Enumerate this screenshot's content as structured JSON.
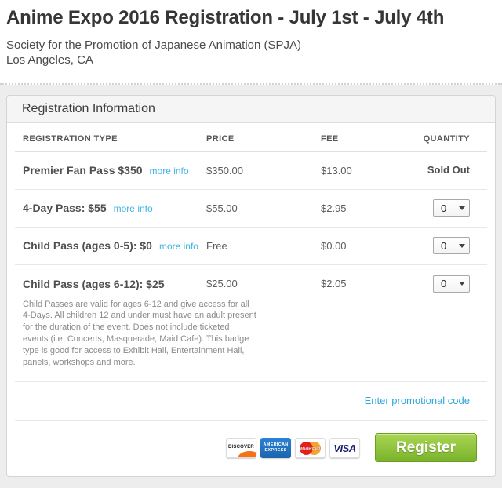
{
  "page": {
    "title": "Anime Expo 2016 Registration - July 1st - July 4th",
    "organization": "Society for the Promotion of Japanese Animation (SPJA)",
    "location": "Los Angeles, CA"
  },
  "panel": {
    "header": "Registration Information",
    "columns": {
      "type": "REGISTRATION TYPE",
      "price": "PRICE",
      "fee": "FEE",
      "quantity": "QUANTITY"
    }
  },
  "rows": [
    {
      "name": "Premier Fan Pass $350",
      "more_info": "more info",
      "price": "$350.00",
      "fee": "$13.00",
      "availability": "Sold Out"
    },
    {
      "name": "4-Day Pass: $55",
      "more_info": "more info",
      "price": "$55.00",
      "fee": "$2.95",
      "quantity": "0"
    },
    {
      "name": "Child Pass (ages 0-5): $0",
      "more_info": "more info",
      "price": "Free",
      "fee": "$0.00",
      "quantity": "0"
    },
    {
      "name": "Child Pass (ages 6-12): $25",
      "price": "$25.00",
      "fee": "$2.05",
      "quantity": "0",
      "description": "Child Passes are valid for ages 6-12 and give access for all 4-Days. All children 12 and under must have an adult present for the duration of the event. Does not include ticketed events (i.e. Concerts, Masquerade, Maid Cafe). This badge type is good for access to Exhibit Hall, Entertainment Hall, panels, workshops and more."
    }
  ],
  "promo": {
    "link_label": "Enter promotional code"
  },
  "footer": {
    "payment_icons": [
      {
        "name": "Discover",
        "label": "DISCOVER"
      },
      {
        "name": "American Express",
        "label_line1": "AMERICAN",
        "label_line2": "EXPRESS"
      },
      {
        "name": "MasterCard",
        "label": "MasterCard"
      },
      {
        "name": "VISA",
        "label": "VISA"
      }
    ],
    "register_label": "Register"
  },
  "colors": {
    "link_blue": "#3db3e3",
    "promo_blue": "#2fa7da",
    "register_green_top": "#aad653",
    "register_green_bottom": "#7ab32c",
    "amex_blue": "#2172c7",
    "visa_blue": "#1a1f71",
    "mastercard_red": "#e32119",
    "mastercard_orange": "#f49b1c",
    "discover_orange": "#f47216",
    "page_background": "#ededed",
    "panel_header_bg": "#f5f5f5"
  }
}
